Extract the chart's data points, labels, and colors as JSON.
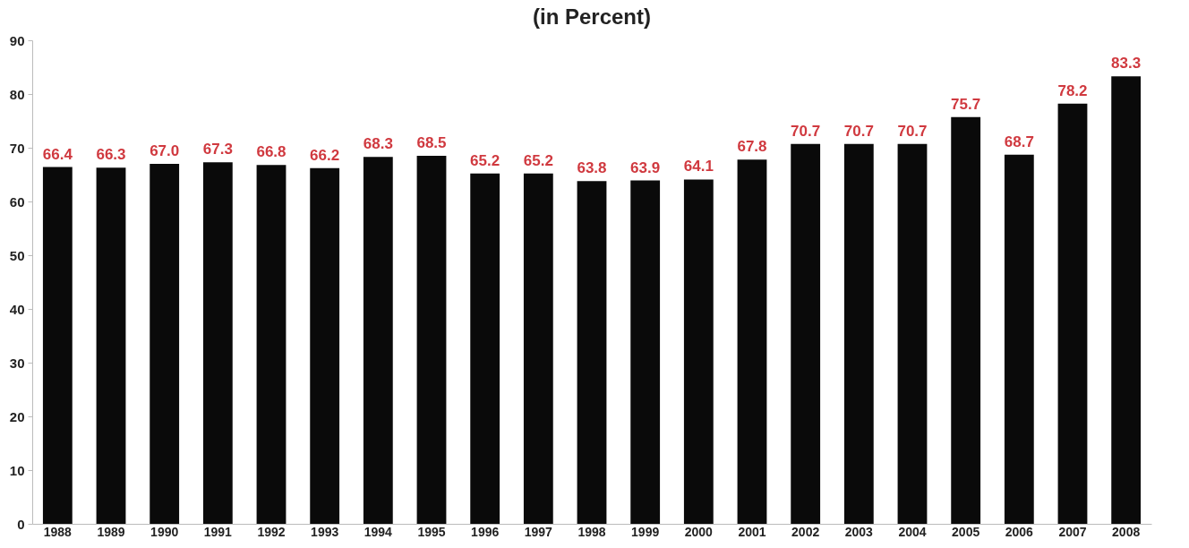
{
  "chart_data": {
    "type": "bar",
    "title": "(in Percent)",
    "categories": [
      "1988",
      "1989",
      "1990",
      "1991",
      "1992",
      "1993",
      "1994",
      "1995",
      "1996",
      "1997",
      "1998",
      "1999",
      "2000",
      "2001",
      "2002",
      "2003",
      "2004",
      "2005",
      "2006",
      "2007",
      "2008"
    ],
    "values": [
      66.4,
      66.3,
      67.0,
      67.3,
      66.8,
      66.2,
      68.3,
      68.5,
      65.2,
      65.2,
      63.8,
      63.9,
      64.1,
      67.8,
      70.7,
      70.7,
      70.7,
      75.7,
      68.7,
      78.2,
      83.3
    ],
    "value_labels": [
      "66.4",
      "66.3",
      "67.0",
      "67.3",
      "66.8",
      "66.2",
      "68.3",
      "68.5",
      "65.2",
      "65.2",
      "63.8",
      "63.9",
      "64.1",
      "67.8",
      "70.7",
      "70.7",
      "70.7",
      "75.7",
      "68.7",
      "78.2",
      "83.3"
    ],
    "color": "#0a0a0a",
    "ylim": [
      0,
      90
    ],
    "yticks": [
      0,
      10,
      20,
      30,
      40,
      50,
      60,
      70,
      80,
      90
    ],
    "grid": false
  }
}
